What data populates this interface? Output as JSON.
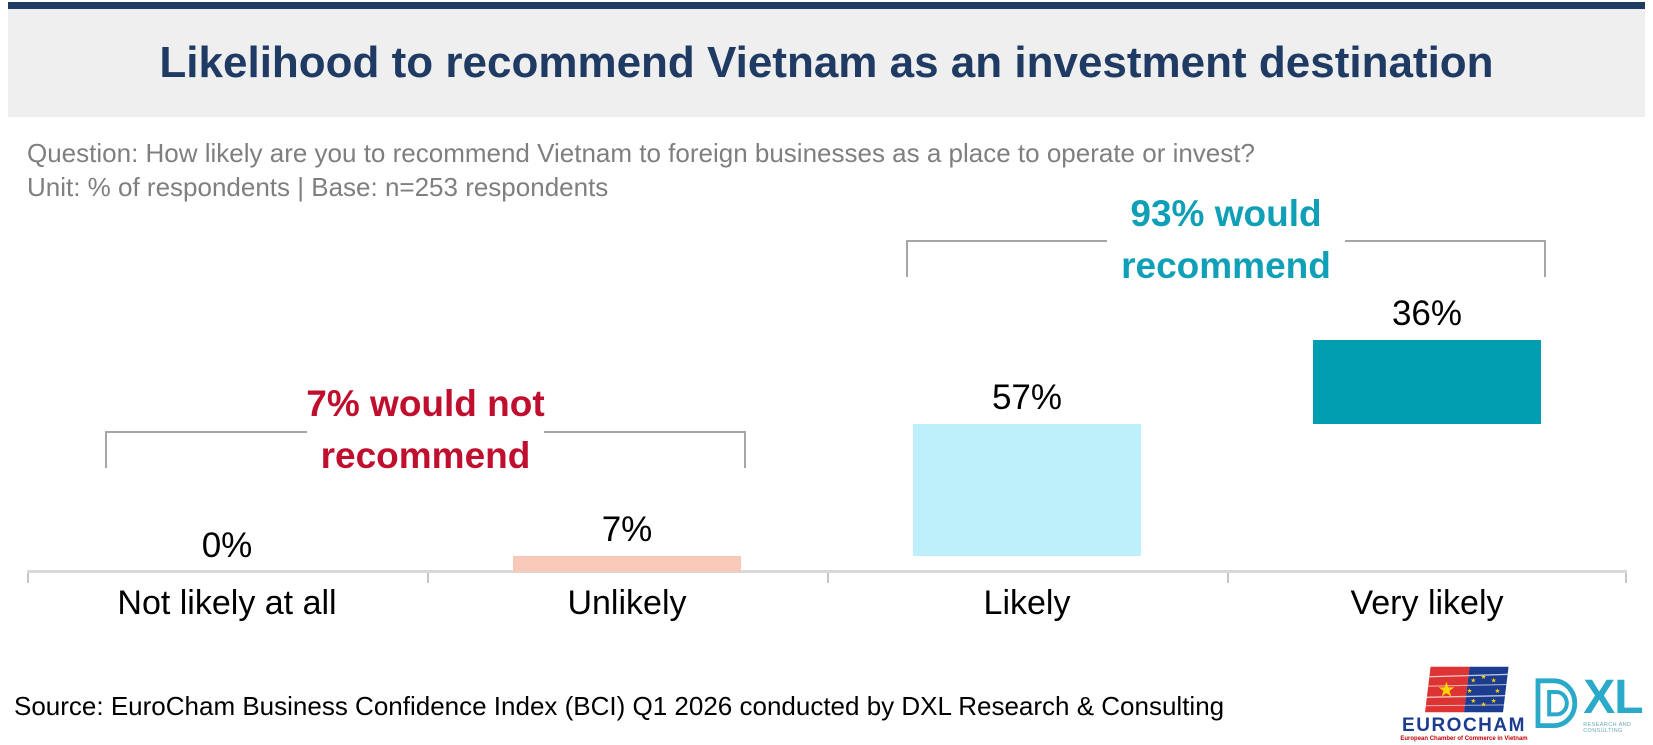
{
  "header": {
    "title": "Likelihood to recommend Vietnam as an investment destination"
  },
  "meta": {
    "question": "Question: How likely are you to recommend Vietnam to foreign businesses as a place to operate or invest?",
    "unit_base": "Unit: % of respondents | Base: n=253 respondents"
  },
  "chart_data": {
    "type": "bar",
    "subtype": "waterfall-stacked-percent",
    "title": "Likelihood to recommend Vietnam as an investment destination",
    "categories": [
      "Not likely at all",
      "Unlikely",
      "Likely",
      "Very likely"
    ],
    "values": [
      0,
      7,
      57,
      36
    ],
    "value_labels": [
      "0%",
      "7%",
      "57%",
      "36%"
    ],
    "cumulative_start": [
      0,
      0,
      7,
      64
    ],
    "bar_colors": [
      "none",
      "#f8c9b8",
      "#bdf0fb",
      "#009eb0"
    ],
    "ylim": [
      0,
      100
    ],
    "grid": false,
    "axis_color": "#d9d9d9",
    "annotations": [
      {
        "line1": "7% would not",
        "line2": "recommend",
        "total": 7,
        "color": "#c00f2e",
        "spans_categories": [
          "Not likely at all",
          "Unlikely"
        ]
      },
      {
        "line1": "93% would",
        "line2": "recommend",
        "total": 93,
        "color": "#0fa0b8",
        "spans_categories": [
          "Likely",
          "Very likely"
        ]
      }
    ]
  },
  "footer": {
    "source": "Source: EuroCham Business Confidence Index (BCI) Q1 2026 conducted by DXL Research & Consulting"
  },
  "logos": {
    "eurocham": {
      "name": "EUROCHAM",
      "tagline": "European Chamber of Commerce in Vietnam",
      "flag_red": "#dd3333",
      "flag_blue": "#1b3c8f",
      "star_yellow": "#ffd400"
    },
    "dxl": {
      "letters": "XL",
      "tagline": "RESEARCH AND CONSULTING",
      "color": "#2aa9c9"
    }
  }
}
